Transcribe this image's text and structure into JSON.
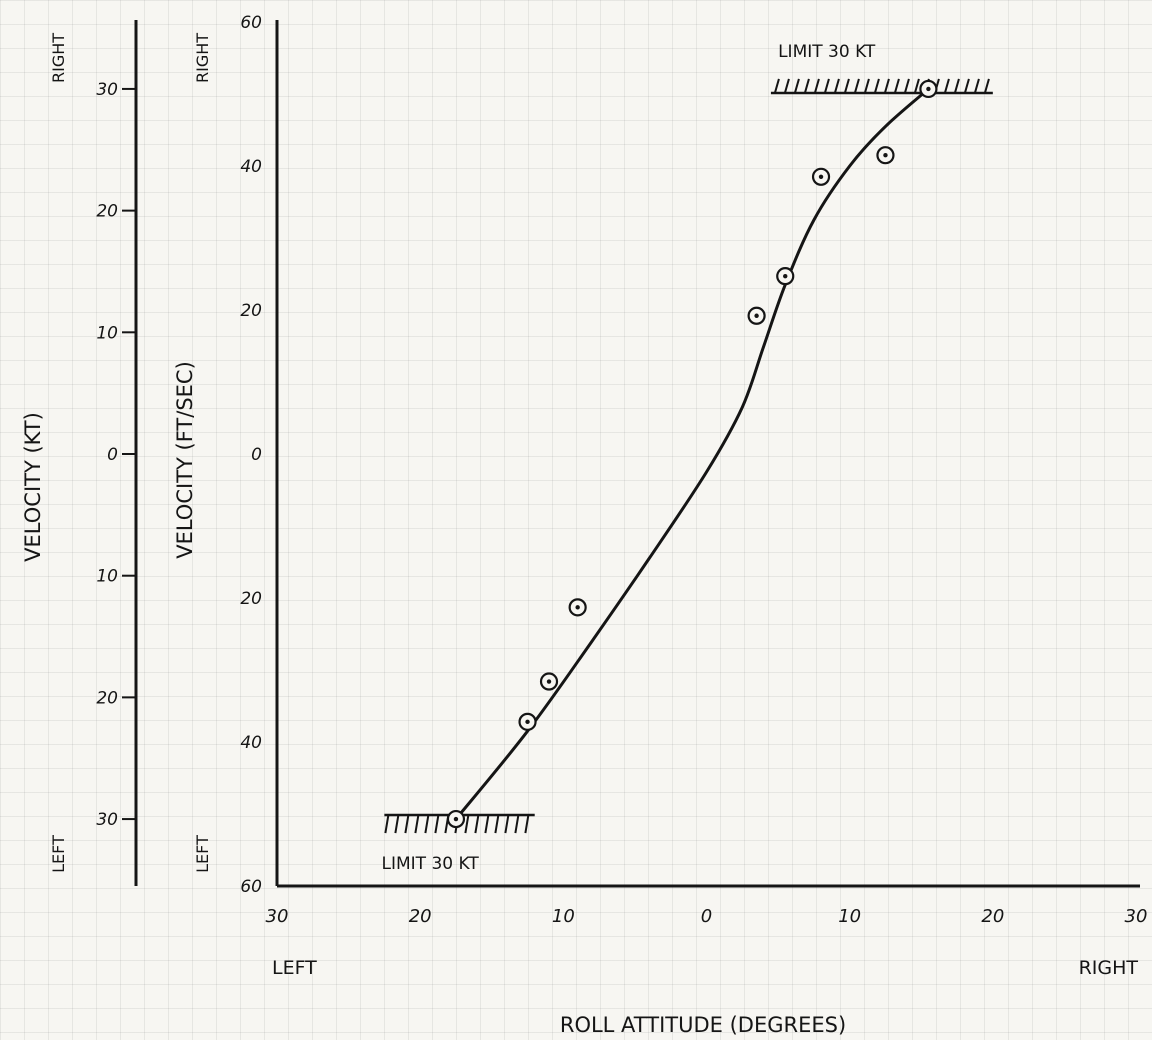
{
  "chart_data": {
    "type": "scatter",
    "title": "",
    "xlabel": "ROLL ATTITUDE (DEGREES)",
    "ylabel": "VELOCITY (FT/SEC)",
    "secondary_ylabel": "VELOCITY (KT)",
    "x_side_labels": {
      "left": "LEFT",
      "right": "RIGHT"
    },
    "y_side_labels": {
      "top": "RIGHT",
      "bottom": "LEFT"
    },
    "x_tick_labels": [
      "30",
      "20",
      "10",
      "0",
      "10",
      "20",
      "30"
    ],
    "x_tick_values": [
      -30,
      -20,
      -10,
      0,
      10,
      20,
      30
    ],
    "xlim": [
      -30,
      30
    ],
    "y_tick_labels": [
      "60",
      "40",
      "20",
      "0",
      "20",
      "40",
      "60"
    ],
    "y_tick_values": [
      60,
      40,
      20,
      0,
      -20,
      -40,
      -60
    ],
    "ylim": [
      -60,
      60
    ],
    "kt_tick_labels": [
      "30",
      "20",
      "10",
      "0",
      "10",
      "20",
      "30"
    ],
    "kt_tick_values": [
      30,
      20,
      10,
      0,
      -10,
      -20,
      -30
    ],
    "kt_lim": [
      -35.5,
      35.5
    ],
    "grid": false,
    "series": [
      {
        "points": [
          {
            "x": -17.5,
            "y": -50.7
          },
          {
            "x": -12.5,
            "y": -37.2
          },
          {
            "x": -11.0,
            "y": -31.6
          },
          {
            "x": -9.0,
            "y": -21.3
          },
          {
            "x": 3.5,
            "y": 19.2
          },
          {
            "x": 5.5,
            "y": 24.7
          },
          {
            "x": 8.0,
            "y": 38.5
          },
          {
            "x": 12.5,
            "y": 41.5
          },
          {
            "x": 15.5,
            "y": 50.7
          }
        ]
      }
    ],
    "fit_curve": [
      {
        "x": -17.5,
        "y": -50.7
      },
      {
        "x": -12.5,
        "y": -38.5
      },
      {
        "x": -8.0,
        "y": -26.0
      },
      {
        "x": -4.0,
        "y": -14.5
      },
      {
        "x": 0.0,
        "y": -2.5
      },
      {
        "x": 2.5,
        "y": 6.5
      },
      {
        "x": 4.0,
        "y": 15.0
      },
      {
        "x": 5.5,
        "y": 23.5
      },
      {
        "x": 7.5,
        "y": 32.5
      },
      {
        "x": 10.0,
        "y": 40.0
      },
      {
        "x": 12.5,
        "y": 45.5
      },
      {
        "x": 15.5,
        "y": 50.7
      }
    ],
    "annotations": [
      {
        "text": "LIMIT 30 KT",
        "x_from": 4.5,
        "x_to": 20.0,
        "y": 50.7
      },
      {
        "text": "LIMIT 30 KT",
        "x_from": -22.5,
        "x_to": -12.0,
        "y": -50.7
      }
    ]
  }
}
